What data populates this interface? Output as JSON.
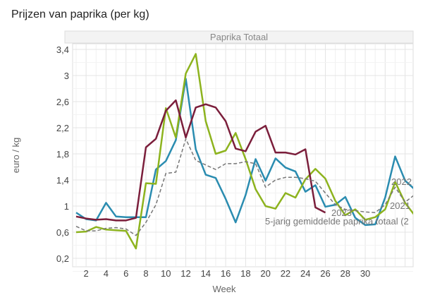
{
  "title": "Prijzen van paprika (per kg)",
  "chart_data": {
    "type": "line",
    "panel_title": "Paprika Totaal",
    "xlabel": "Week",
    "ylabel": "euro / kg",
    "xlim": [
      0.6,
      34.8
    ],
    "ylim": [
      0.08,
      3.53
    ],
    "x_ticks": [
      2,
      4,
      6,
      8,
      10,
      12,
      14,
      16,
      18,
      20,
      22,
      24,
      26,
      28,
      30
    ],
    "y_ticks": [
      0.2,
      0.6,
      1,
      1.4,
      1.8,
      2.2,
      2.6,
      3,
      3.4
    ],
    "y_tick_labels": [
      "0,2",
      "0,6",
      "1",
      "1,4",
      "1,8",
      "2,2",
      "2,6",
      "3",
      "3,4"
    ],
    "grid": true,
    "series": [
      {
        "name": "2022",
        "color": "#2a8cb0",
        "dashed": false,
        "x": [
          1,
          2,
          3,
          4,
          5,
          6,
          7,
          8,
          9,
          10,
          11,
          12,
          13,
          14,
          15,
          16,
          17,
          18,
          19,
          20,
          21,
          22,
          23,
          24,
          25,
          26,
          27,
          28,
          29,
          30,
          31,
          32,
          33,
          34,
          35
        ],
        "values": [
          0.9,
          0.8,
          0.78,
          1.05,
          0.84,
          0.83,
          0.83,
          0.83,
          1.56,
          1.69,
          2.01,
          2.95,
          1.87,
          1.48,
          1.43,
          1.11,
          0.75,
          1.17,
          1.72,
          1.39,
          1.73,
          1.59,
          1.53,
          1.22,
          1.32,
          0.99,
          1.02,
          1.14,
          0.82,
          0.71,
          0.72,
          1.13,
          1.76,
          1.39,
          1.25
        ]
      },
      {
        "name": "2021",
        "color": "#8db31e",
        "dashed": false,
        "x": [
          1,
          2,
          3,
          4,
          5,
          6,
          7,
          8,
          9,
          10,
          11,
          12,
          13,
          14,
          15,
          16,
          17,
          18,
          19,
          20,
          21,
          22,
          23,
          24,
          25,
          26,
          27,
          28,
          29,
          30,
          31,
          32,
          33,
          34,
          35
        ],
        "values": [
          0.6,
          0.61,
          0.68,
          0.64,
          0.63,
          0.62,
          0.35,
          1.35,
          1.34,
          2.5,
          2.05,
          3.03,
          3.33,
          2.3,
          1.8,
          1.85,
          2.12,
          1.72,
          1.26,
          1.0,
          0.96,
          1.2,
          1.13,
          1.41,
          1.57,
          1.42,
          1.08,
          0.86,
          0.95,
          0.79,
          0.83,
          0.95,
          1.37,
          1.05,
          0.85
        ]
      },
      {
        "name": "2023",
        "color": "#7b1e3b",
        "dashed": false,
        "x": [
          1,
          2,
          3,
          4,
          5,
          6,
          7,
          8,
          9,
          10,
          11,
          12,
          13,
          14,
          15,
          16,
          17,
          18,
          19,
          20,
          21,
          22,
          23,
          24,
          25,
          26
        ],
        "values": [
          0.84,
          0.81,
          0.79,
          0.8,
          0.78,
          0.78,
          0.82,
          1.9,
          2.03,
          2.46,
          2.62,
          2.05,
          2.51,
          2.56,
          2.51,
          2.3,
          1.88,
          1.84,
          2.14,
          2.23,
          1.82,
          1.82,
          1.79,
          1.87,
          0.98,
          0.9
        ]
      },
      {
        "name": "5-jarig gemiddelde paprika totaal (2",
        "color": "#777777",
        "dashed": true,
        "x": [
          1,
          2,
          3,
          4,
          5,
          6,
          7,
          8,
          9,
          10,
          11,
          12,
          13,
          14,
          15,
          16,
          17,
          18,
          19,
          20,
          21,
          22,
          23,
          24,
          25,
          26,
          27,
          28,
          29,
          30,
          31,
          32,
          33,
          34,
          35
        ],
        "values": [
          0.69,
          0.62,
          0.62,
          0.66,
          0.67,
          0.65,
          0.55,
          0.75,
          1.02,
          1.5,
          1.52,
          2.03,
          1.7,
          1.63,
          1.56,
          1.65,
          1.65,
          1.68,
          1.65,
          1.29,
          1.4,
          1.44,
          1.44,
          1.42,
          1.38,
          1.2,
          1.02,
          0.95,
          0.93,
          0.91,
          0.9,
          1.02,
          1.29,
          1.06,
          1.18
        ]
      }
    ],
    "annotations": [
      {
        "text": "2022",
        "series": "2022"
      },
      {
        "text": "2021",
        "series": "2021"
      },
      {
        "text": "2023",
        "series": "2023"
      },
      {
        "text": "5-jarig gemiddelde paprika totaal (2",
        "series": "5-jarig gemiddelde paprika totaal (2"
      }
    ]
  }
}
